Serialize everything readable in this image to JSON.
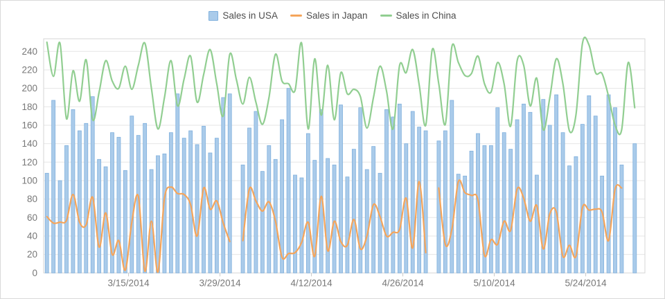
{
  "legend": {
    "items": [
      {
        "label": "Sales in USA",
        "marker": "square"
      },
      {
        "label": "Sales in Japan",
        "marker": "line"
      },
      {
        "label": "Sales in China",
        "marker": "line"
      }
    ]
  },
  "colors": {
    "bar_fill": "#aacbea",
    "bar_stroke": "#7fb0dd",
    "japan_line": "#f5a55b",
    "china_line": "#91ce91",
    "grid": "#e6e6e6",
    "plot_border": "#d6d6d6",
    "axis_text": "#777777",
    "legend_text": "#4e4e4e",
    "tick": "#c9c9c9"
  },
  "y_axis": {
    "min": 0,
    "max": 240,
    "step": 20,
    "labels": [
      "0",
      "20",
      "40",
      "60",
      "80",
      "100",
      "120",
      "140",
      "160",
      "180",
      "200",
      "220",
      "240"
    ]
  },
  "x_axis": {
    "ticks": [
      {
        "label": "3/15/2014",
        "index": 13
      },
      {
        "label": "3/29/2014",
        "index": 27
      },
      {
        "label": "4/12/2014",
        "index": 41
      },
      {
        "label": "4/26/2014",
        "index": 55
      },
      {
        "label": "5/10/2014",
        "index": 69
      },
      {
        "label": "5/24/2014",
        "index": 83
      }
    ]
  },
  "chart_data": {
    "type": "bar+line",
    "title": "",
    "xlabel": "",
    "ylabel": "",
    "ylim": [
      0,
      240
    ],
    "grid": "horizontal",
    "legend_position": "top-center",
    "categories": [
      "3/2/2014",
      "3/3/2014",
      "3/4/2014",
      "3/5/2014",
      "3/6/2014",
      "3/7/2014",
      "3/8/2014",
      "3/9/2014",
      "3/10/2014",
      "3/11/2014",
      "3/12/2014",
      "3/13/2014",
      "3/14/2014",
      "3/15/2014",
      "3/16/2014",
      "3/17/2014",
      "3/18/2014",
      "3/19/2014",
      "3/20/2014",
      "3/21/2014",
      "3/22/2014",
      "3/23/2014",
      "3/24/2014",
      "3/25/2014",
      "3/26/2014",
      "3/27/2014",
      "3/28/2014",
      "3/29/2014",
      "3/30/2014",
      "3/31/2014",
      "4/1/2014",
      "4/2/2014",
      "4/3/2014",
      "4/4/2014",
      "4/5/2014",
      "4/6/2014",
      "4/7/2014",
      "4/8/2014",
      "4/9/2014",
      "4/10/2014",
      "4/11/2014",
      "4/12/2014",
      "4/13/2014",
      "4/14/2014",
      "4/15/2014",
      "4/16/2014",
      "4/17/2014",
      "4/18/2014",
      "4/19/2014",
      "4/20/2014",
      "4/21/2014",
      "4/22/2014",
      "4/23/2014",
      "4/24/2014",
      "4/25/2014",
      "4/26/2014",
      "4/27/2014",
      "4/28/2014",
      "4/29/2014",
      "4/30/2014",
      "5/1/2014",
      "5/2/2014",
      "5/3/2014",
      "5/4/2014",
      "5/5/2014",
      "5/6/2014",
      "5/7/2014",
      "5/8/2014",
      "5/9/2014",
      "5/10/2014",
      "5/11/2014",
      "5/12/2014",
      "5/13/2014",
      "5/14/2014",
      "5/15/2014",
      "5/16/2014",
      "5/17/2014",
      "5/18/2014",
      "5/19/2014",
      "5/20/2014",
      "5/21/2014",
      "5/22/2014",
      "5/23/2014",
      "5/24/2014",
      "5/25/2014",
      "5/26/2014",
      "5/27/2014",
      "5/28/2014",
      "5/29/2014",
      "5/30/2014",
      "5/31/2014"
    ],
    "series": [
      {
        "name": "Sales in USA",
        "type": "bar",
        "color": "#aacbea",
        "values": [
          108,
          187,
          100,
          138,
          177,
          154,
          162,
          191,
          123,
          115,
          152,
          147,
          111,
          170,
          149,
          162,
          112,
          127,
          129,
          152,
          194,
          146,
          154,
          139,
          159,
          130,
          146,
          190,
          194,
          0,
          117,
          157,
          175,
          110,
          138,
          123,
          166,
          200,
          106,
          103,
          151,
          122,
          177,
          124,
          117,
          182,
          104,
          134,
          179,
          112,
          137,
          108,
          177,
          169,
          183,
          140,
          175,
          158,
          154,
          0,
          143,
          154,
          187,
          107,
          105,
          132,
          151,
          138,
          138,
          179,
          152,
          134,
          166,
          183,
          174,
          106,
          188,
          160,
          193,
          152,
          116,
          126,
          161,
          192,
          170,
          105,
          193,
          179,
          117,
          0,
          140
        ]
      },
      {
        "name": "Sales in Japan",
        "type": "line",
        "color": "#f5a55b",
        "values": [
          61,
          54,
          55,
          57,
          85,
          55,
          52,
          82,
          28,
          65,
          20,
          35,
          3,
          55,
          83,
          2,
          56,
          1,
          81,
          93,
          86,
          85,
          74,
          40,
          92,
          69,
          78,
          54,
          34,
          null,
          35,
          91,
          78,
          67,
          77,
          56,
          17,
          21,
          22,
          33,
          55,
          18,
          83,
          24,
          56,
          34,
          30,
          58,
          26,
          40,
          74,
          61,
          40,
          44,
          47,
          81,
          27,
          99,
          22,
          null,
          92,
          31,
          47,
          99,
          87,
          84,
          79,
          19,
          36,
          31,
          56,
          46,
          91,
          81,
          56,
          73,
          26,
          64,
          66,
          18,
          30,
          18,
          71,
          68,
          69,
          66,
          35,
          91,
          92,
          null,
          null
        ]
      },
      {
        "name": "Sales in China",
        "type": "line",
        "color": "#91ce91",
        "values": [
          250,
          213,
          249,
          167,
          219,
          186,
          231,
          166,
          196,
          230,
          208,
          200,
          224,
          199,
          225,
          249,
          200,
          156,
          190,
          230,
          181,
          210,
          235,
          185,
          215,
          242,
          205,
          170,
          237,
          210,
          183,
          212,
          185,
          161,
          190,
          237,
          208,
          205,
          198,
          249,
          156,
          232,
          171,
          225,
          166,
          217,
          194,
          199,
          191,
          157,
          190,
          224,
          197,
          156,
          225,
          217,
          242,
          204,
          160,
          242,
          205,
          161,
          245,
          228,
          214,
          216,
          235,
          205,
          196,
          228,
          205,
          159,
          230,
          225,
          181,
          211,
          155,
          190,
          232,
          205,
          154,
          171,
          249,
          247,
          217,
          216,
          191,
          160,
          155,
          228,
          179
        ]
      }
    ]
  }
}
